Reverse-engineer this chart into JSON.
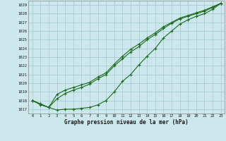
{
  "title": "Graphe pression niveau de la mer (hPa)",
  "xlabel_ticks": [
    0,
    1,
    2,
    3,
    4,
    5,
    6,
    7,
    8,
    9,
    10,
    11,
    12,
    13,
    14,
    15,
    16,
    17,
    18,
    19,
    20,
    21,
    22,
    23
  ],
  "ylim": [
    1016.5,
    1029.5
  ],
  "xlim": [
    -0.5,
    23.5
  ],
  "yticks": [
    1017,
    1018,
    1019,
    1020,
    1021,
    1022,
    1023,
    1024,
    1025,
    1026,
    1027,
    1028,
    1029
  ],
  "bg_color": "#cce8ed",
  "grid_color": "#a0c8cc",
  "line_color": "#1a6b1a",
  "series_smooth1": [
    1018.0,
    1017.6,
    1017.2,
    1018.7,
    1019.2,
    1019.5,
    1019.8,
    1020.1,
    1020.7,
    1021.2,
    1022.2,
    1023.1,
    1023.9,
    1024.5,
    1025.2,
    1025.8,
    1026.5,
    1027.0,
    1027.5,
    1027.8,
    1028.1,
    1028.4,
    1028.8,
    1029.2
  ],
  "series_smooth2": [
    1018.0,
    1017.6,
    1017.2,
    1018.2,
    1018.8,
    1019.2,
    1019.5,
    1019.9,
    1020.5,
    1021.0,
    1022.0,
    1022.8,
    1023.6,
    1024.2,
    1025.0,
    1025.6,
    1026.3,
    1026.9,
    1027.4,
    1027.7,
    1028.0,
    1028.3,
    1028.7,
    1029.2
  ],
  "series_wiggly": [
    1018.0,
    1017.5,
    1017.2,
    1016.9,
    1017.0,
    1017.0,
    1017.1,
    1017.2,
    1017.5,
    1018.0,
    1019.0,
    1020.2,
    1021.0,
    1022.1,
    1023.1,
    1024.0,
    1025.2,
    1026.0,
    1026.8,
    1027.3,
    1027.7,
    1028.0,
    1028.5,
    1029.2
  ]
}
